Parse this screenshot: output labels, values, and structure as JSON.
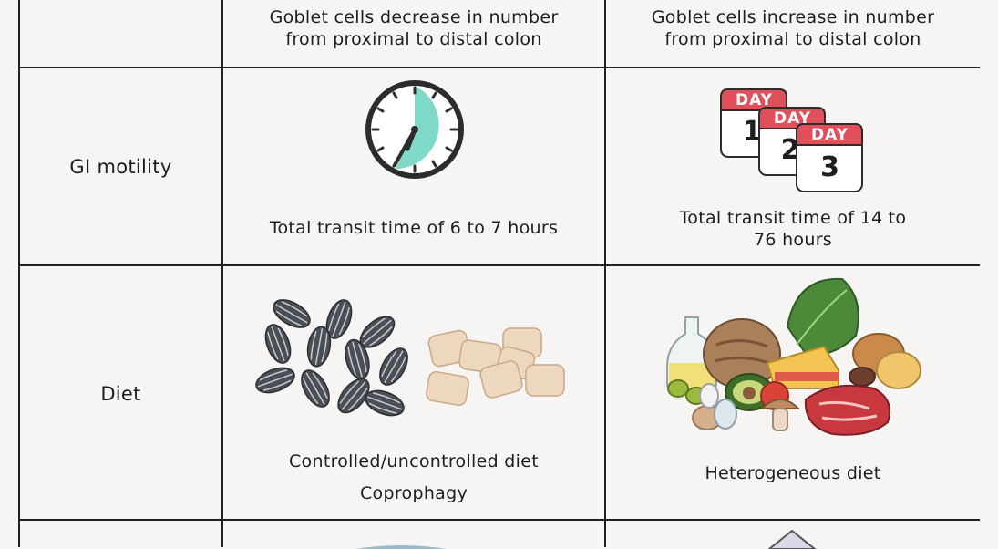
{
  "header_row": {
    "col1": [
      "Goblet cells decrease in number",
      "from proximal to distal colon"
    ],
    "col2": [
      "Goblet cells increase in number",
      "from proximal to distal colon"
    ]
  },
  "gi_motility": {
    "label": "GI motility",
    "col1_caption": "Total transit time of 6 to 7 hours",
    "col2_caption": [
      "Total transit time of 14 to",
      "76 hours"
    ],
    "calendar": [
      {
        "tab": "DAY",
        "number": "1"
      },
      {
        "tab": "DAY",
        "number": "2"
      },
      {
        "tab": "DAY",
        "number": "3"
      }
    ]
  },
  "diet": {
    "label": "Diet",
    "col1_captions": [
      "Controlled/uncontrolled diet",
      "Coprophagy"
    ],
    "col2_caption": "Heterogeneous diet"
  },
  "colors": {
    "line": "#222222",
    "clock_fill": "#7fd8c8",
    "calendar_red": "#e0505a",
    "seed_dark": "#4a4f56",
    "pellet": "#edd7bf"
  }
}
